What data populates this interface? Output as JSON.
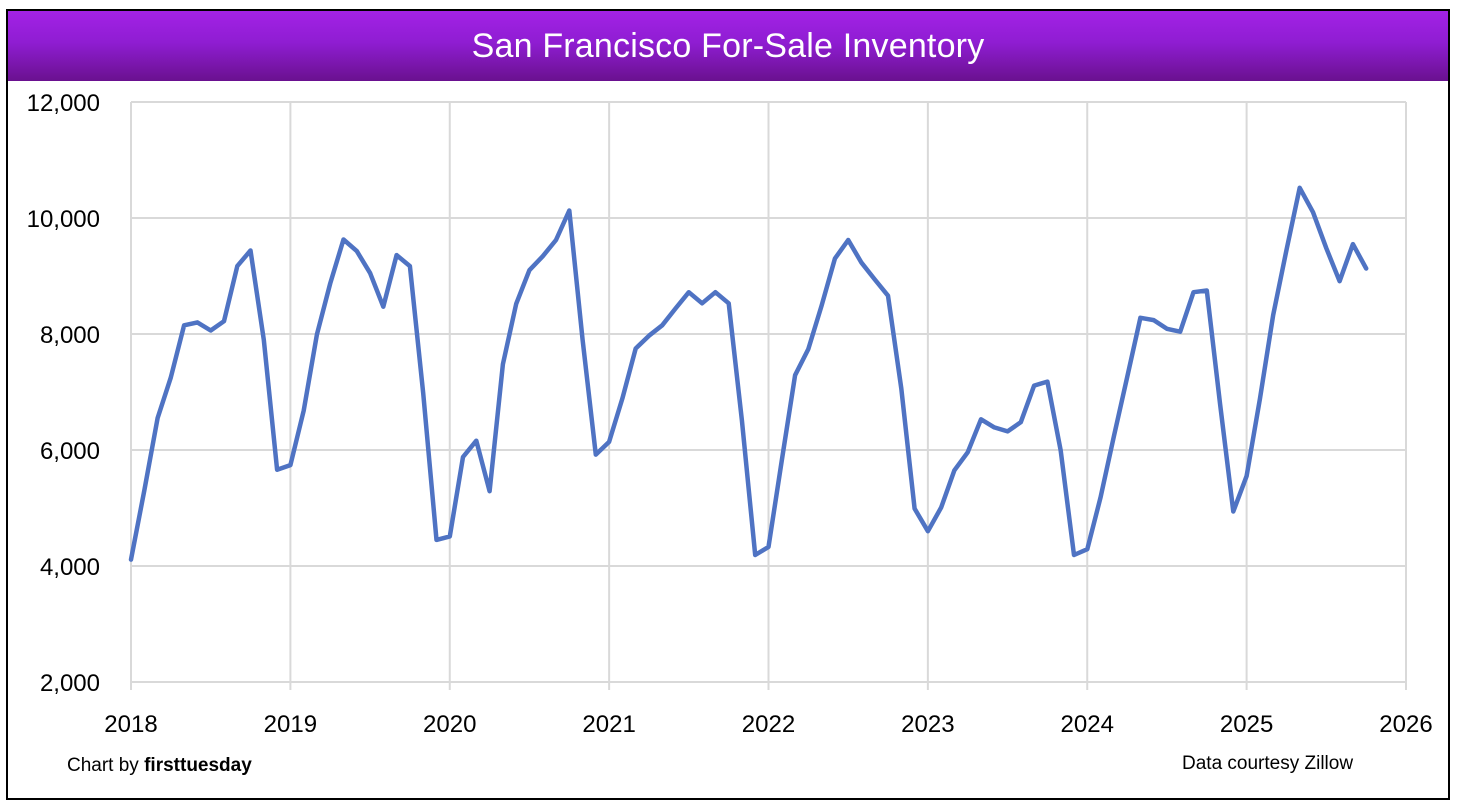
{
  "title": "San Francisco For-Sale Inventory",
  "credits": {
    "chart_by_prefix": "Chart by",
    "chart_by_brand": "firsttuesday",
    "source": "Data courtesy Zillow"
  },
  "colors": {
    "header_start": "#a322e6",
    "header_end": "#6a118f",
    "line": "#4f73c3",
    "grid": "#d9d9d9"
  },
  "chart_data": {
    "type": "line",
    "title": "San Francisco For-Sale Inventory",
    "xlabel": "",
    "ylabel": "",
    "xlim": [
      2018,
      2026
    ],
    "ylim": [
      2000,
      12000
    ],
    "x_ticks": [
      "2018",
      "2019",
      "2020",
      "2021",
      "2022",
      "2023",
      "2024",
      "2025",
      "2026"
    ],
    "y_ticks": [
      "2,000",
      "4,000",
      "6,000",
      "8,000",
      "10,000",
      "12,000"
    ],
    "grid": true,
    "legend": "none",
    "series": [
      {
        "name": "For-Sale Inventory",
        "start_year": 2018,
        "start_month": 1,
        "values": [
          4110,
          5300,
          6550,
          7250,
          8150,
          8200,
          8060,
          8220,
          9170,
          9440,
          7900,
          5660,
          5740,
          6680,
          7990,
          8870,
          9630,
          9430,
          9050,
          8470,
          9360,
          9170,
          6980,
          4450,
          4510,
          5880,
          6160,
          5290,
          7480,
          8520,
          9100,
          9340,
          9620,
          10130,
          7900,
          5920,
          6140,
          6890,
          7750,
          7970,
          8150,
          8440,
          8720,
          8530,
          8720,
          8530,
          6510,
          4190,
          4330,
          5820,
          7290,
          7740,
          8490,
          9300,
          9620,
          9230,
          8940,
          8660,
          7060,
          4990,
          4600,
          5010,
          5650,
          5960,
          6530,
          6390,
          6320,
          6480,
          7110,
          7180,
          5990,
          4190,
          4290,
          5180,
          6230,
          7250,
          8280,
          8240,
          8090,
          8040,
          8720,
          8750,
          6790,
          4940,
          5550,
          6880,
          8330,
          9450,
          10520,
          10100,
          9480,
          8910,
          9550,
          9130
        ]
      }
    ]
  }
}
